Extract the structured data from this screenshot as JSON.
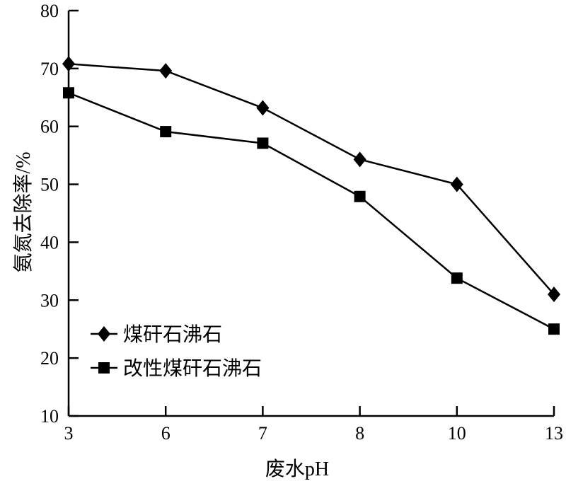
{
  "chart_data": {
    "type": "line",
    "title": "",
    "xlabel": "废水pH",
    "ylabel": "氨氮去除率/%",
    "categories": [
      "3",
      "6",
      "7",
      "8",
      "10",
      "13"
    ],
    "ylim": [
      10,
      80
    ],
    "yticks": [
      10,
      20,
      30,
      40,
      50,
      60,
      70,
      80
    ],
    "grid": false,
    "legend_position": "bottom-left",
    "series": [
      {
        "name": "煤矸石沸石",
        "marker": "diamond",
        "color": "#000000",
        "values": [
          70.8,
          69.6,
          63.2,
          54.3,
          50.0,
          31.0
        ]
      },
      {
        "name": "改性煤矸石沸石",
        "marker": "square",
        "color": "#000000",
        "values": [
          65.8,
          59.1,
          57.1,
          47.9,
          33.8,
          25.0
        ]
      }
    ]
  }
}
